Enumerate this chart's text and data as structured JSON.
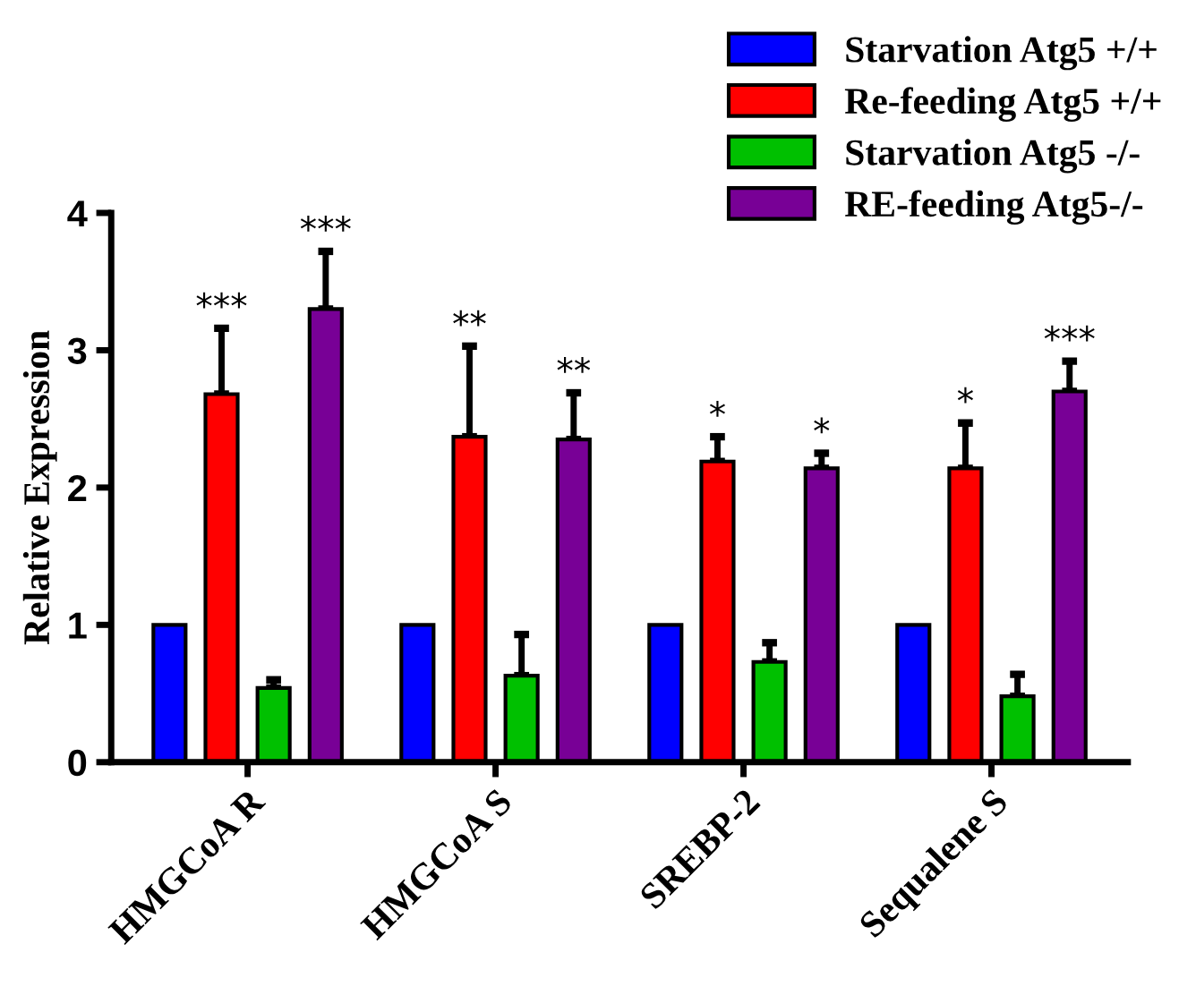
{
  "chart_data": {
    "type": "bar",
    "ylabel": "Relative Expression",
    "categories": [
      "HMGCoA R",
      "HMGCoA S",
      "SREBP-2",
      "Sequalene S"
    ],
    "ylim": [
      0,
      4
    ],
    "yticks": [
      0,
      1,
      2,
      3,
      4
    ],
    "grid": false,
    "legend": "top right",
    "series": [
      {
        "name": "Starvation Atg5 +/+",
        "color": "#0000ff",
        "values": [
          1,
          1,
          1,
          1
        ]
      },
      {
        "name": "Re-feeding Atg5 +/+",
        "color": "#ff0000",
        "values": [
          2.68,
          2.37,
          2.19,
          2.14
        ],
        "errors": [
          [
            2.68,
            3.16
          ],
          [
            2.37,
            3.03
          ],
          [
            2.19,
            2.37
          ],
          [
            2.14,
            2.47
          ]
        ],
        "value_labels": [
          "***",
          "**",
          "*",
          "*"
        ]
      },
      {
        "name": "Starvation Atg5 -/-",
        "color": "#00c000",
        "values": [
          0.54,
          0.63,
          0.73,
          0.48
        ],
        "errors": [
          [
            0.54,
            0.6
          ],
          [
            0.63,
            0.93
          ],
          [
            0.73,
            0.87
          ],
          [
            0.48,
            0.64
          ]
        ]
      },
      {
        "name": "RE-feeding Atg5-/-",
        "color": "#780096",
        "values": [
          3.3,
          2.35,
          2.14,
          2.7
        ],
        "errors": [
          [
            3.3,
            3.72
          ],
          [
            2.35,
            2.69
          ],
          [
            2.14,
            2.25
          ],
          [
            2.7,
            2.92
          ]
        ],
        "value_labels": [
          "***",
          "**",
          "*",
          "***"
        ]
      }
    ]
  }
}
